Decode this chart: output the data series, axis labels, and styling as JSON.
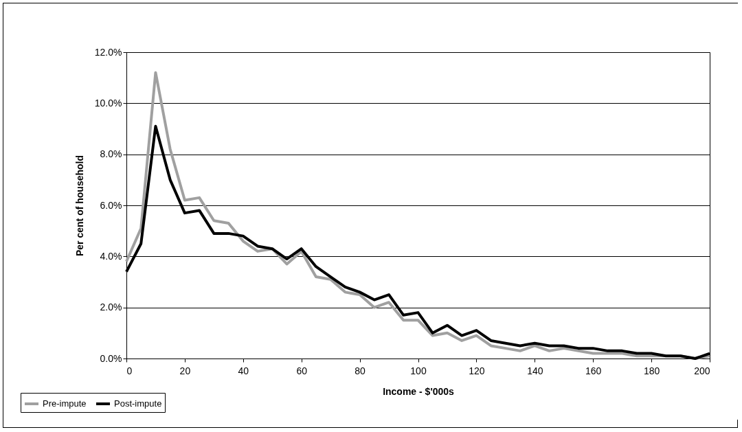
{
  "chart_data": {
    "type": "line",
    "xlabel": "Income - $'000s",
    "ylabel": "Per cent of household",
    "x": [
      0,
      5,
      10,
      15,
      20,
      25,
      30,
      35,
      40,
      45,
      50,
      55,
      60,
      65,
      70,
      75,
      80,
      85,
      90,
      95,
      100,
      105,
      110,
      115,
      120,
      125,
      130,
      135,
      140,
      145,
      150,
      155,
      160,
      165,
      170,
      175,
      180,
      185,
      190,
      195,
      200
    ],
    "series": [
      {
        "name": "Pre-impute",
        "color": "#a0a0a0",
        "values": [
          3.8,
          5.1,
          11.2,
          8.2,
          6.2,
          6.3,
          5.4,
          5.3,
          4.6,
          4.2,
          4.3,
          3.7,
          4.2,
          3.2,
          3.1,
          2.6,
          2.5,
          2.0,
          2.2,
          1.5,
          1.5,
          0.9,
          1.0,
          0.7,
          0.9,
          0.5,
          0.4,
          0.3,
          0.5,
          0.3,
          0.4,
          0.3,
          0.2,
          0.2,
          0.2,
          0.1,
          0.1,
          0.1,
          0.1,
          0.0,
          0.1
        ]
      },
      {
        "name": "Post-impute",
        "color": "#000000",
        "values": [
          3.4,
          4.5,
          9.1,
          7.0,
          5.7,
          5.8,
          4.9,
          4.9,
          4.8,
          4.4,
          4.3,
          3.9,
          4.3,
          3.6,
          3.2,
          2.8,
          2.6,
          2.3,
          2.5,
          1.7,
          1.8,
          1.0,
          1.3,
          0.9,
          1.1,
          0.7,
          0.6,
          0.5,
          0.6,
          0.5,
          0.5,
          0.4,
          0.4,
          0.3,
          0.3,
          0.2,
          0.2,
          0.1,
          0.1,
          0.0,
          0.2
        ]
      }
    ],
    "xlim": [
      0,
      200
    ],
    "xticks": [
      0,
      20,
      40,
      60,
      80,
      100,
      120,
      140,
      160,
      180,
      200
    ],
    "ylim": [
      0,
      12
    ],
    "yticks": [
      {
        "value": 0,
        "label": "0.0%"
      },
      {
        "value": 2,
        "label": "2.0%"
      },
      {
        "value": 4,
        "label": "4.0%"
      },
      {
        "value": 6,
        "label": "6.0%"
      },
      {
        "value": 8,
        "label": "8.0%"
      },
      {
        "value": 10,
        "label": "10.0%"
      },
      {
        "value": 12,
        "label": "12.0%"
      }
    ],
    "grid": "y",
    "legend": "bottom left",
    "marker": "none",
    "line_style": "solid"
  }
}
